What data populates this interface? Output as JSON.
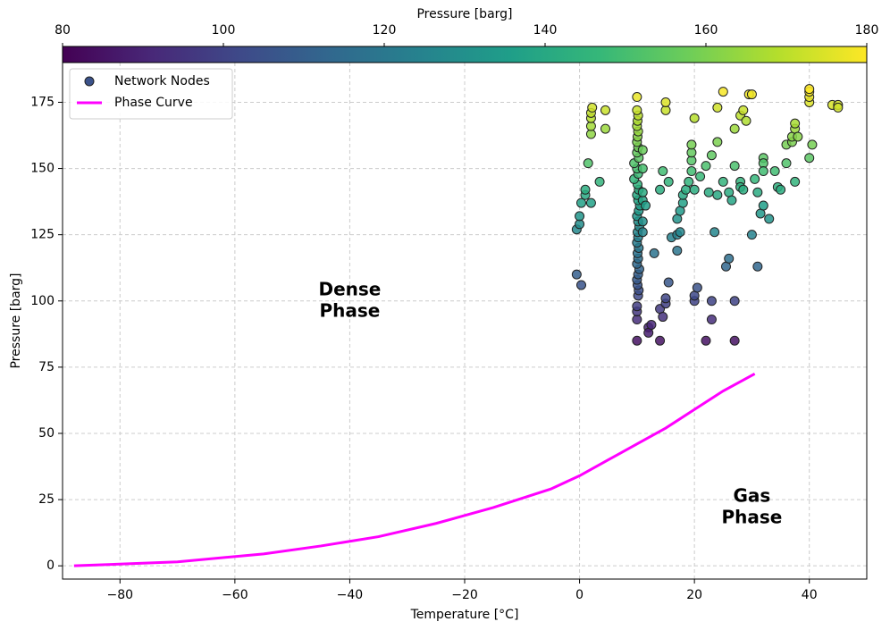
{
  "chart_data": {
    "type": "scatter",
    "xlabel": "Temperature [°C]",
    "ylabel": "Pressure [barg]",
    "xlim": [
      -90,
      50
    ],
    "xticks": [
      {
        "value": -80,
        "label": "−80"
      },
      {
        "value": -60,
        "label": "−60"
      },
      {
        "value": -40,
        "label": "−40"
      },
      {
        "value": -20,
        "label": "−20"
      },
      0,
      20,
      40
    ],
    "ylim": [
      -5,
      190
    ],
    "yticks": [
      0,
      25,
      50,
      75,
      100,
      125,
      150,
      175
    ],
    "grid": true,
    "legend": "upper left",
    "colorbar": {
      "label": "Pressure [barg]",
      "colormap": "viridis",
      "lim": [
        80,
        180
      ],
      "ticks": [
        80,
        100,
        120,
        140,
        160,
        180
      ]
    },
    "annotations": [
      {
        "lines": [
          "Dense",
          "Phase"
        ],
        "x": -40,
        "y": 100
      },
      {
        "lines": [
          "Gas",
          "Phase"
        ],
        "x": 30,
        "y": 22
      }
    ],
    "series": [
      {
        "name": "Network Nodes",
        "type": "scatter",
        "edgecolor": "#222222",
        "x": [
          10,
          10,
          10,
          10,
          10.2,
          10.3,
          10.1,
          10,
          10.2,
          10.4,
          10,
          10.2,
          10.1,
          10.3,
          10,
          10.2,
          10.1,
          10.4,
          10.2,
          10,
          10.3,
          10.5,
          10.2,
          10,
          10.3,
          10.1,
          9.5,
          10.2,
          10,
          9.5,
          10.3,
          10,
          10.2,
          10,
          10.1,
          10.2,
          10,
          10.1,
          10.2,
          10,
          10,
          11,
          11,
          11,
          11.5,
          11,
          11,
          12,
          12,
          12.5,
          11,
          -0.5,
          0.3,
          -0.5,
          0,
          0,
          0.3,
          1,
          1,
          2,
          1.5,
          2,
          2,
          2,
          2,
          2.2,
          3.5,
          4.5,
          4.5,
          13,
          14,
          14,
          14.5,
          15,
          15,
          15.5,
          14,
          14.5,
          15,
          15,
          15.5,
          16,
          17,
          17,
          17.5,
          17,
          17.5,
          18,
          18,
          18.5,
          19,
          19.5,
          19.5,
          19.5,
          19.5,
          20,
          20,
          20,
          20,
          20.5,
          21,
          22,
          22,
          22.5,
          23,
          23,
          23.5,
          23,
          24,
          24,
          24,
          25,
          25,
          25.5,
          26,
          26,
          26.5,
          27,
          27,
          27,
          27,
          28,
          28,
          28.5,
          28,
          28.5,
          29,
          29.5,
          30,
          30,
          30.5,
          31,
          31,
          31.5,
          32,
          32,
          32,
          32,
          33,
          34,
          34.5,
          35,
          36,
          36,
          37,
          37,
          37.5,
          37.5,
          37.5,
          38,
          40,
          40,
          40,
          40,
          40,
          40.5,
          44,
          45,
          45
        ],
        "values": [
          85,
          93,
          96,
          98,
          102,
          104,
          106,
          108,
          110,
          112,
          114,
          116,
          118,
          120,
          122,
          124,
          126,
          128,
          130,
          132,
          134,
          136,
          138,
          140,
          142,
          144,
          146,
          148,
          150,
          152,
          154,
          156,
          158,
          160,
          162,
          164,
          166,
          168,
          170,
          172,
          177,
          150,
          157,
          138,
          136,
          130,
          126,
          90,
          88,
          91,
          141,
          110,
          106,
          127,
          129,
          132,
          137,
          140,
          142,
          137,
          152,
          163,
          166,
          169,
          171,
          173,
          145,
          165,
          172,
          118,
          85,
          97,
          94,
          99,
          101,
          107,
          142,
          149,
          172,
          175,
          145,
          124,
          119,
          125,
          126,
          131,
          134,
          137,
          140,
          142,
          145,
          149,
          153,
          156,
          159,
          169,
          142,
          100,
          102,
          105,
          147,
          85,
          151,
          141,
          93,
          100,
          126,
          155,
          173,
          140,
          160,
          179,
          145,
          113,
          116,
          141,
          138,
          85,
          100,
          151,
          165,
          145,
          143,
          142,
          170,
          172,
          168,
          178,
          178,
          125,
          146,
          113,
          141,
          133,
          136,
          154,
          152,
          149,
          131,
          149,
          143,
          142,
          159,
          152,
          160,
          162,
          165,
          167,
          145,
          162,
          175,
          177,
          179,
          180,
          154,
          159,
          174,
          174,
          173
        ]
      },
      {
        "name": "Phase Curve",
        "type": "line",
        "color": "#ff00ff",
        "x": [
          -88,
          -70,
          -55,
          -45,
          -35,
          -25,
          -15,
          -5,
          0,
          5,
          10,
          15,
          20,
          25,
          30.5
        ],
        "values": [
          0,
          1.5,
          4.5,
          7.5,
          11,
          16,
          22,
          29,
          34,
          40,
          46,
          52,
          59,
          66,
          72.5
        ]
      }
    ]
  }
}
